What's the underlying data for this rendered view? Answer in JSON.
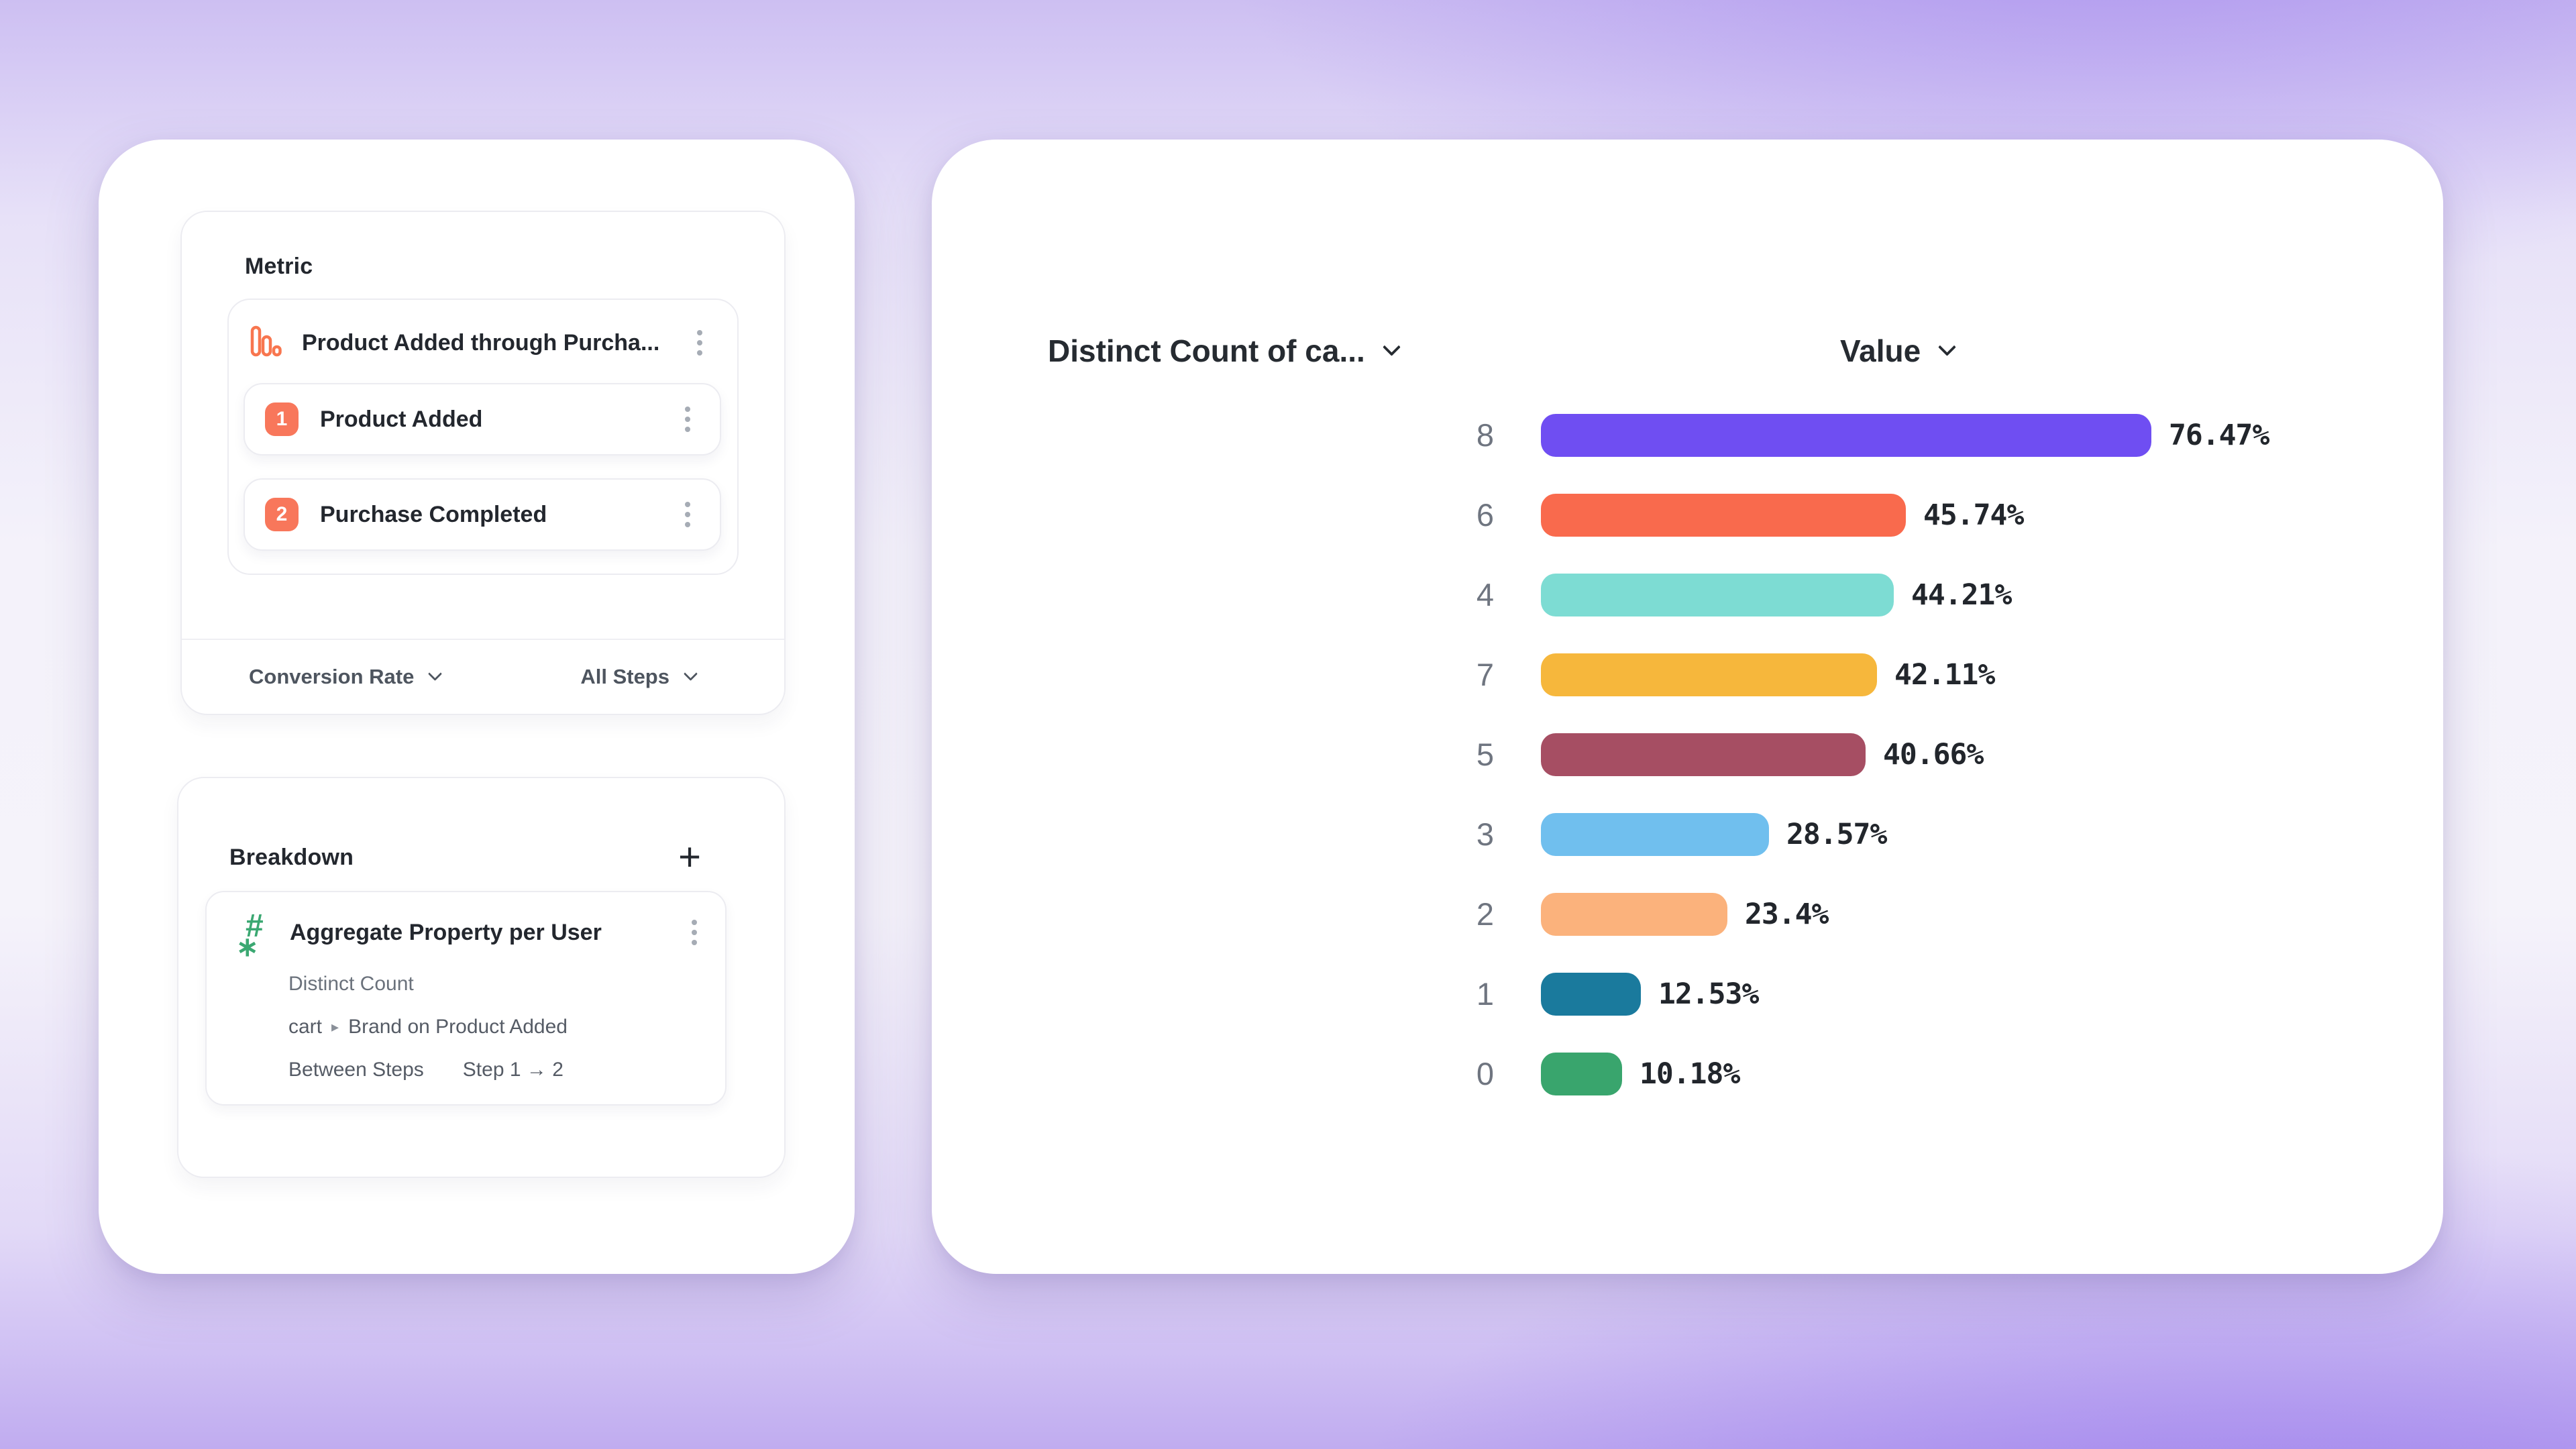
{
  "icons": {
    "plus": "+",
    "hash": "#",
    "star": "∗"
  },
  "colors": {
    "accent_coral": "#F8764F",
    "step_badge": "#F8775B",
    "accent_green": "#3BA872",
    "panel_bg": "#FFFFFF",
    "background_purple": "#C0ACF0"
  },
  "metric_panel": {
    "title": "Metric",
    "funnel": {
      "title": "Product Added through Purcha...",
      "steps": [
        {
          "number": "1",
          "label": "Product Added"
        },
        {
          "number": "2",
          "label": "Purchase Completed"
        }
      ],
      "measured_as_label": "Conversion Rate",
      "steps_scope_label": "All Steps"
    }
  },
  "breakdown_panel": {
    "title": "Breakdown",
    "property_card": {
      "title": "Aggregate Property per User",
      "aggregation": "Distinct Count",
      "property_path": {
        "group": "cart",
        "separator": "▸",
        "name": "Brand on Product Added"
      },
      "scope_label": "Between Steps",
      "scope_value": "Step 1 → 2"
    }
  },
  "chart_panel": {
    "category_header": "Distinct Count of ca...",
    "value_header": "Value"
  },
  "chart_data": {
    "type": "bar",
    "orientation": "horizontal",
    "title": "",
    "xlabel": "Value",
    "ylabel": "Distinct Count of ca...",
    "xlim": [
      0,
      100
    ],
    "grid": "off",
    "legend": "none",
    "categories": [
      "8",
      "6",
      "4",
      "7",
      "5",
      "3",
      "2",
      "1",
      "0"
    ],
    "values": [
      76.47,
      45.74,
      44.21,
      42.11,
      40.66,
      28.57,
      23.4,
      12.53,
      10.18
    ],
    "value_labels": [
      "76.47%",
      "45.74%",
      "44.21%",
      "42.11%",
      "40.66%",
      "28.57%",
      "23.4%",
      "12.53%",
      "10.18%"
    ],
    "bar_colors": [
      "#6F4EF2",
      "#F96A4D",
      "#7DDCD3",
      "#F6B73C",
      "#A64E63",
      "#70BFEE",
      "#FBB27C",
      "#1A7A9D",
      "#39A56D"
    ]
  }
}
